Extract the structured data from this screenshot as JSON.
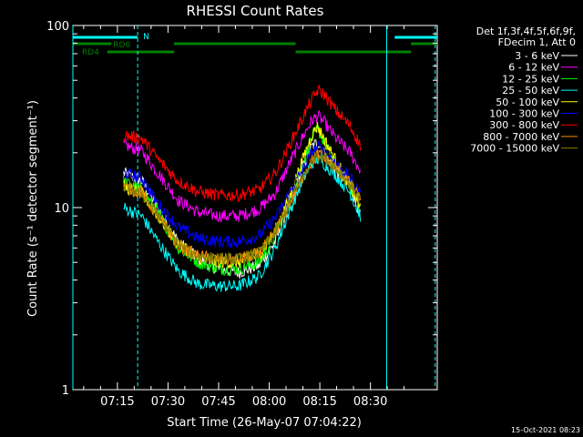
{
  "chart_data": {
    "type": "line",
    "title": "RHESSI Count Rates",
    "xlabel": "Start Time (26-May-07 07:04:22)",
    "ylabel": "Count Rate (s⁻¹ detector segment⁻¹)",
    "yscale": "log",
    "ylim": [
      1,
      100
    ],
    "xlim": [
      7.03,
      8.83
    ],
    "x_ticks": [
      7.25,
      7.5,
      7.75,
      8.0,
      8.25,
      8.5
    ],
    "x_tick_labels": [
      "07:15",
      "07:30",
      "07:45",
      "08:00",
      "08:15",
      "08:30"
    ],
    "y_tick_values": [
      1,
      10,
      100
    ],
    "y_tick_labels": [
      "1",
      "10",
      "100"
    ],
    "legend_header": [
      "Det 1f,3f,4f,5f,6f,9f,",
      "FDecim 1, Att 0"
    ],
    "series": [
      {
        "name": "3 - 6 keV",
        "color": "#ffffff",
        "x": [
          7.28,
          7.37,
          7.45,
          7.55,
          7.65,
          7.75,
          7.85,
          7.95,
          8.03,
          8.1,
          8.17,
          8.21,
          8.24,
          8.27,
          8.33,
          8.4,
          8.45
        ],
        "values": [
          15.5,
          14,
          10,
          6.5,
          5.2,
          4.6,
          4.4,
          4.8,
          6.5,
          10.5,
          17,
          21.5,
          23,
          20,
          16,
          13,
          9
        ]
      },
      {
        "name": "6 - 12 keV",
        "color": "#ff00ff",
        "x": [
          7.28,
          7.37,
          7.45,
          7.55,
          7.65,
          7.75,
          7.85,
          7.95,
          8.03,
          8.1,
          8.17,
          8.21,
          8.24,
          8.27,
          8.33,
          8.4,
          8.45
        ],
        "values": [
          22,
          20.5,
          15.5,
          11,
          9.4,
          9,
          9,
          9.8,
          12,
          17.5,
          25,
          30,
          32,
          29.5,
          24,
          20,
          16
        ]
      },
      {
        "name": "12 - 25 keV",
        "color": "#00ff00",
        "x": [
          7.28,
          7.37,
          7.45,
          7.55,
          7.65,
          7.75,
          7.85,
          7.95,
          8.03,
          8.1,
          8.17,
          8.21,
          8.24,
          8.27,
          8.33,
          8.4,
          8.45
        ],
        "values": [
          14,
          12.5,
          9.5,
          6,
          5,
          4.6,
          4.6,
          5,
          7,
          11,
          18,
          24,
          27,
          23,
          17,
          13,
          10
        ]
      },
      {
        "name": "25 - 50 keV",
        "color": "#00ffff",
        "x": [
          7.28,
          7.37,
          7.45,
          7.55,
          7.65,
          7.75,
          7.85,
          7.95,
          8.03,
          8.1,
          8.17,
          8.21,
          8.24,
          8.27,
          8.33,
          8.4,
          8.45
        ],
        "values": [
          10,
          9,
          6.5,
          4.5,
          3.8,
          3.7,
          3.7,
          4.2,
          6,
          9.5,
          14.5,
          17.5,
          18.5,
          17.5,
          15,
          12,
          9
        ]
      },
      {
        "name": "50 - 100 keV",
        "color": "#ffff00",
        "x": [
          7.28,
          7.37,
          7.45,
          7.55,
          7.65,
          7.75,
          7.85,
          7.95,
          8.03,
          8.1,
          8.17,
          8.21,
          8.24,
          8.27,
          8.33,
          8.4,
          8.45
        ],
        "values": [
          13,
          12,
          9,
          6.3,
          5.3,
          5,
          5,
          5.5,
          7.5,
          11.5,
          19,
          25,
          28,
          24,
          18,
          13,
          10
        ]
      },
      {
        "name": "100 - 300 keV",
        "color": "#0000ff",
        "x": [
          7.28,
          7.37,
          7.45,
          7.55,
          7.65,
          7.75,
          7.85,
          7.95,
          8.03,
          8.1,
          8.17,
          8.21,
          8.24,
          8.27,
          8.33,
          8.4,
          8.45
        ],
        "values": [
          15.5,
          14.5,
          10.5,
          7.8,
          6.8,
          6.5,
          6.5,
          7,
          8.8,
          12,
          16.5,
          20,
          21.5,
          20.5,
          17.5,
          14.5,
          12
        ]
      },
      {
        "name": "300 - 800 keV",
        "color": "#ff0000",
        "x": [
          7.28,
          7.37,
          7.45,
          7.55,
          7.65,
          7.75,
          7.85,
          7.95,
          8.03,
          8.1,
          8.17,
          8.21,
          8.24,
          8.27,
          8.33,
          8.4,
          8.45
        ],
        "values": [
          25,
          24,
          18.5,
          14,
          12.2,
          11.7,
          11.7,
          12.5,
          15.5,
          22,
          32,
          39,
          44,
          42,
          34,
          28,
          22
        ]
      },
      {
        "name": "800 - 7000 keV",
        "color": "#ff8c00",
        "x": [
          7.28,
          7.37,
          7.45,
          7.55,
          7.65,
          7.75,
          7.85,
          7.95,
          8.03,
          8.1,
          8.17,
          8.21,
          8.24,
          8.27,
          8.33,
          8.4,
          8.45
        ],
        "values": [
          13,
          12,
          9,
          6.2,
          5.4,
          5.2,
          5.2,
          5.6,
          7.3,
          10.5,
          15,
          18,
          19.5,
          19,
          16.5,
          13.5,
          11
        ]
      },
      {
        "name": "7000 - 15000 keV",
        "color": "#808000",
        "x": [
          7.28,
          7.37,
          7.45,
          7.55,
          7.65,
          7.75,
          7.85,
          7.95,
          8.03,
          8.1,
          8.17,
          8.21,
          8.24,
          8.27,
          8.33,
          8.4,
          8.45
        ],
        "values": [
          13,
          12,
          9,
          6.2,
          5.4,
          5.2,
          5.2,
          5.6,
          7.3,
          10.5,
          15,
          18,
          19.5,
          19,
          16.5,
          13.5,
          11
        ]
      }
    ],
    "status_bars": [
      {
        "label": "N",
        "color": "#00ffff",
        "segments": [
          [
            7.03,
            7.35
          ],
          [
            8.62,
            8.83
          ]
        ],
        "level": 1
      },
      {
        "label": "RD0",
        "color": "#008000",
        "segments": [
          [
            7.03,
            7.22
          ],
          [
            7.53,
            8.13
          ],
          [
            8.7,
            8.83
          ]
        ],
        "level": 2
      },
      {
        "label": "RD4",
        "color": "#008000",
        "segments": [
          [
            7.2,
            7.53
          ],
          [
            8.13,
            8.7
          ]
        ],
        "level": 3
      }
    ],
    "vertical_lines": [
      {
        "x": 7.03,
        "style": "solid",
        "color": "#00ffff"
      },
      {
        "x": 7.35,
        "style": "dashed",
        "color": "#00ffff"
      },
      {
        "x": 8.58,
        "style": "solid",
        "color": "#00ffff"
      },
      {
        "x": 8.82,
        "style": "dashed",
        "color": "#00ffff"
      }
    ]
  },
  "footer": {
    "timestamp": "15-Oct-2021 08:23"
  }
}
